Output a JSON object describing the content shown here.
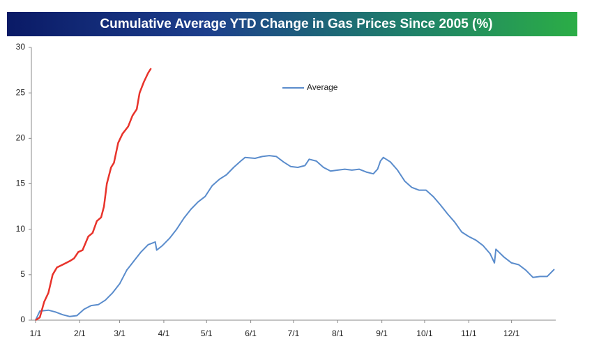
{
  "chart_data": {
    "type": "line",
    "title": "Cumulative Average YTD Change in Gas Prices Since 2005 (%)",
    "series": [
      {
        "name": "Average",
        "color": "#5a8ccc",
        "x": [
          1,
          4,
          10,
          15,
          20,
          25,
          30,
          35,
          40,
          45,
          50,
          55,
          60,
          65,
          70,
          75,
          80,
          85,
          86,
          90,
          95,
          100,
          105,
          110,
          115,
          120,
          125,
          130,
          135,
          140,
          145,
          148,
          155,
          160,
          165,
          170,
          175,
          180,
          185,
          190,
          193,
          198,
          203,
          208,
          213,
          218,
          223,
          228,
          233,
          238,
          241,
          243,
          245,
          250,
          255,
          260,
          265,
          270,
          275,
          280,
          285,
          290,
          295,
          300,
          305,
          310,
          315,
          320,
          323,
          324,
          330,
          335,
          340,
          345,
          350,
          355,
          360,
          365
        ],
        "values": [
          0,
          1.0,
          1.1,
          0.9,
          0.6,
          0.4,
          0.5,
          1.2,
          1.6,
          1.7,
          2.2,
          3.0,
          4.0,
          5.5,
          6.5,
          7.5,
          8.3,
          8.6,
          7.7,
          8.2,
          9.0,
          10.0,
          11.2,
          12.2,
          13.0,
          13.6,
          14.8,
          15.5,
          16.0,
          16.8,
          17.5,
          17.9,
          17.8,
          18.0,
          18.1,
          18.0,
          17.4,
          16.9,
          16.8,
          17.0,
          17.7,
          17.5,
          16.8,
          16.4,
          16.5,
          16.6,
          16.5,
          16.6,
          16.3,
          16.1,
          16.6,
          17.5,
          17.9,
          17.4,
          16.5,
          15.3,
          14.6,
          14.3,
          14.3,
          13.6,
          12.7,
          11.7,
          10.8,
          9.7,
          9.2,
          8.8,
          8.2,
          7.3,
          6.3,
          7.8,
          6.9,
          6.3,
          6.1,
          5.5,
          4.7,
          4.8,
          4.8,
          5.6
        ]
      },
      {
        "color": "#e8332b",
        "x": [
          1,
          4,
          7,
          10,
          13,
          16,
          20,
          25,
          28,
          31,
          34,
          38,
          41,
          44,
          47,
          49,
          51,
          54,
          56,
          59,
          62,
          66,
          69,
          72,
          74,
          77,
          80,
          82
        ],
        "values": [
          0,
          0.3,
          2.0,
          3.0,
          5.0,
          5.8,
          6.1,
          6.5,
          6.8,
          7.5,
          7.7,
          9.2,
          9.6,
          10.9,
          11.3,
          12.5,
          15.0,
          16.8,
          17.3,
          19.5,
          20.5,
          21.3,
          22.5,
          23.2,
          25.0,
          26.2,
          27.2,
          27.7
        ]
      }
    ],
    "xlim": [
      1,
      366
    ],
    "xticks": [
      {
        "value": 1,
        "label": "1/1"
      },
      {
        "value": 32,
        "label": "2/1"
      },
      {
        "value": 60,
        "label": "3/1"
      },
      {
        "value": 91,
        "label": "4/1"
      },
      {
        "value": 121,
        "label": "5/1"
      },
      {
        "value": 152,
        "label": "6/1"
      },
      {
        "value": 182,
        "label": "7/1"
      },
      {
        "value": 213,
        "label": "8/1"
      },
      {
        "value": 244,
        "label": "9/1"
      },
      {
        "value": 274,
        "label": "10/1"
      },
      {
        "value": 305,
        "label": "11/1"
      },
      {
        "value": 335,
        "label": "12/1"
      }
    ],
    "ylim": [
      0,
      30
    ],
    "yticks": [
      0,
      5,
      10,
      15,
      20,
      25,
      30
    ]
  }
}
